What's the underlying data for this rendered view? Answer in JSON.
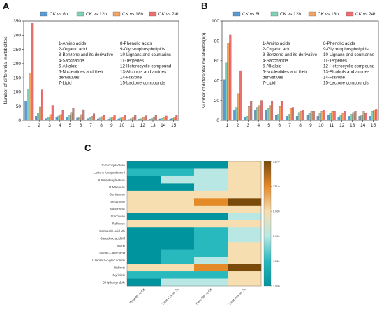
{
  "categories_legend": [
    "1-Amino acids",
    "2-Organic acid",
    "3-Benzene and its derivative",
    "4-Saccharide",
    "5-Alkaloid",
    "6-Nucleotides and their derivatives",
    "7-Lipid",
    "8-Phenolic acids",
    "9-Glycerophospholipids",
    "10-Lignans and coumarins",
    "11-Terpenes",
    "12-Heterocyclic compound",
    "13-Alcohols and amines",
    "14-Flavone",
    "15-Lactone compounds"
  ],
  "colors": {
    "CK vs 6h": "#5b9bd5",
    "CK vs 12h": "#7fd1b9",
    "CK vs 18h": "#f4a460",
    "CK vs 24h": "#ee6f6f"
  },
  "chart_data": [
    {
      "panel": "A",
      "type": "bar",
      "categories": [
        "1",
        "2",
        "3",
        "4",
        "5",
        "6",
        "7",
        "8",
        "9",
        "10",
        "11",
        "12",
        "13",
        "14",
        "15"
      ],
      "series": [
        {
          "name": "CK vs 6h",
          "values": [
            68,
            14,
            6,
            10,
            12,
            8,
            6,
            5,
            4,
            5,
            3,
            4,
            4,
            5,
            5
          ]
        },
        {
          "name": "CK vs 12h",
          "values": [
            110,
            25,
            12,
            15,
            18,
            12,
            9,
            8,
            8,
            8,
            6,
            6,
            6,
            7,
            7
          ]
        },
        {
          "name": "CK vs 18h",
          "values": [
            167,
            47,
            20,
            20,
            28,
            20,
            14,
            13,
            12,
            12,
            10,
            10,
            10,
            10,
            11
          ]
        },
        {
          "name": "CK vs 24h",
          "values": [
            342,
            107,
            53,
            34,
            44,
            37,
            23,
            17,
            18,
            17,
            17,
            16,
            17,
            15,
            17
          ]
        }
      ],
      "ylabel": "Number of differential metabolites",
      "ylim": [
        0,
        350
      ],
      "yticks": [
        0,
        50,
        100,
        150,
        200,
        250,
        300,
        350
      ]
    },
    {
      "panel": "B",
      "type": "bar",
      "categories": [
        "1",
        "2",
        "3",
        "4",
        "5",
        "6",
        "7",
        "8",
        "9",
        "10",
        "11",
        "12",
        "13",
        "14",
        "15"
      ],
      "series": [
        {
          "name": "CK vs 6h",
          "values": [
            41,
            10,
            3,
            10,
            10,
            5,
            4,
            4,
            5,
            4,
            5,
            3,
            4,
            4,
            4
          ]
        },
        {
          "name": "CK vs 12h",
          "values": [
            58,
            13,
            4,
            13,
            12,
            6,
            6,
            8,
            7,
            7,
            7,
            5,
            6,
            5,
            9
          ]
        },
        {
          "name": "CK vs 18h",
          "values": [
            78,
            27,
            14,
            15,
            15,
            14,
            12,
            9,
            9,
            9,
            9,
            7,
            8,
            9,
            10
          ]
        },
        {
          "name": "CK vs 24h",
          "values": [
            86,
            50,
            19,
            20,
            19,
            19,
            13,
            10,
            9,
            10,
            9,
            9,
            9,
            7,
            11
          ]
        }
      ],
      "ylabel": "Number of differential metabolites(up)",
      "ylim": [
        0,
        100
      ],
      "yticks": [
        0,
        20,
        40,
        60,
        80,
        100
      ]
    },
    {
      "panel": "C",
      "type": "heatmap",
      "rows": [
        "3'-Fucosyllactose",
        "Lacto-n-fucopentaose I",
        "3-Galactosyllactose",
        "D-Mannose",
        "Gentianose",
        "Sesamose",
        "Melezitose",
        "Stachyose",
        "Raffinose",
        "Ganoderic acid Mb",
        "Ganoderic acid Mf",
        "Morin",
        "Indole-3-lactic acid",
        "Luteolin-7-o-glucuronide",
        "Didymin",
        "Myricitrin",
        "5-Hydroxyindole"
      ],
      "columns": [
        "Treat-6h vs CK",
        "Treat-12h vs CK",
        "Treat-18h vs CK",
        "Treat-24h vs CK"
      ],
      "colorbar_ticks": [
        "230.0",
        "125.0",
        "6.000",
        "3.000",
        "1.250",
        "1.000"
      ],
      "values": [
        [
          1.0,
          1.0,
          1.0,
          6.0
        ],
        [
          1.25,
          1.25,
          3.0,
          6.0
        ],
        [
          1.0,
          3.0,
          3.0,
          6.0
        ],
        [
          1.0,
          1.0,
          3.0,
          6.0
        ],
        [
          6.0,
          6.0,
          6.0,
          6.0
        ],
        [
          6.0,
          6.0,
          125.0,
          230.0
        ],
        [
          6.0,
          6.0,
          6.0,
          6.0
        ],
        [
          1.0,
          1.0,
          1.0,
          3.0
        ],
        [
          6.0,
          6.0,
          6.0,
          6.0
        ],
        [
          1.0,
          1.0,
          1.25,
          3.0
        ],
        [
          1.0,
          1.0,
          1.25,
          3.0
        ],
        [
          1.0,
          1.0,
          1.25,
          6.0
        ],
        [
          1.0,
          1.25,
          1.25,
          6.0
        ],
        [
          1.0,
          1.25,
          3.0,
          6.0
        ],
        [
          6.0,
          6.0,
          125.0,
          230.0
        ],
        [
          1.25,
          1.25,
          1.25,
          6.0
        ],
        [
          1.0,
          3.0,
          3.0,
          6.0
        ]
      ]
    }
  ]
}
